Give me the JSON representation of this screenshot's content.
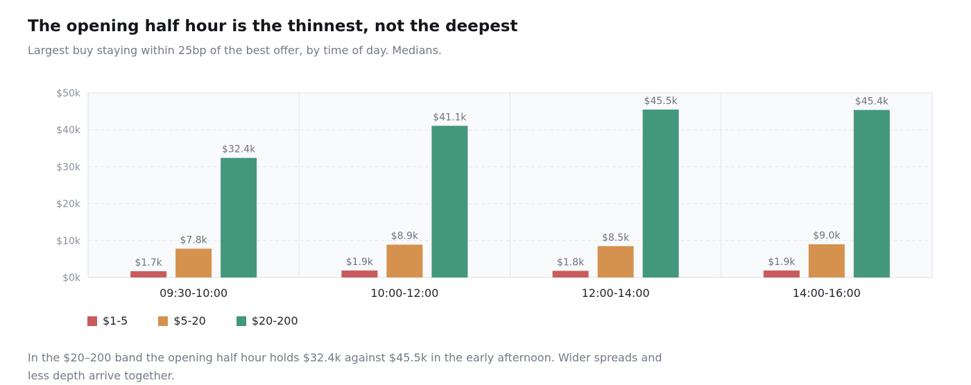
{
  "header": {
    "title": "The opening half hour is the thinnest, not the deepest",
    "subtitle": "Largest buy staying within 25bp of the best offer, by time of day. Medians."
  },
  "footer": {
    "note": "In the $20–200 band the opening half hour holds $32.4k against $45.5k in the early afternoon. Wider spreads and less depth arrive together."
  },
  "chart_data": {
    "type": "bar",
    "title": "The opening half hour is the thinnest, not the deepest",
    "subtitle": "Largest buy staying within 25bp of the best offer, by time of day. Medians.",
    "xlabel": "",
    "ylabel": "",
    "categories": [
      "09:30-10:00",
      "10:00-12:00",
      "12:00-14:00",
      "14:00-16:00"
    ],
    "ylim": [
      0,
      50000
    ],
    "yticks": [
      {
        "value": 0,
        "label": "$0k"
      },
      {
        "value": 10000,
        "label": "$10k"
      },
      {
        "value": 20000,
        "label": "$20k"
      },
      {
        "value": 30000,
        "label": "$30k"
      },
      {
        "value": 40000,
        "label": "$40k"
      },
      {
        "value": 50000,
        "label": "$50k"
      }
    ],
    "grid": true,
    "legend_position": "bottom-left",
    "series": [
      {
        "name": "$1-5",
        "color": "#c85c5c",
        "values": [
          1700,
          1900,
          1800,
          1900
        ],
        "labels": [
          "$1.7k",
          "$1.9k",
          "$1.8k",
          "$1.9k"
        ]
      },
      {
        "name": "$5-20",
        "color": "#d4924e",
        "values": [
          7800,
          8900,
          8500,
          9000
        ],
        "labels": [
          "$7.8k",
          "$8.9k",
          "$8.5k",
          "$9.0k"
        ]
      },
      {
        "name": "$20-200",
        "color": "#43977a",
        "values": [
          32400,
          41100,
          45500,
          45400
        ],
        "labels": [
          "$32.4k",
          "$41.1k",
          "$45.5k",
          "$45.4k"
        ]
      }
    ]
  }
}
